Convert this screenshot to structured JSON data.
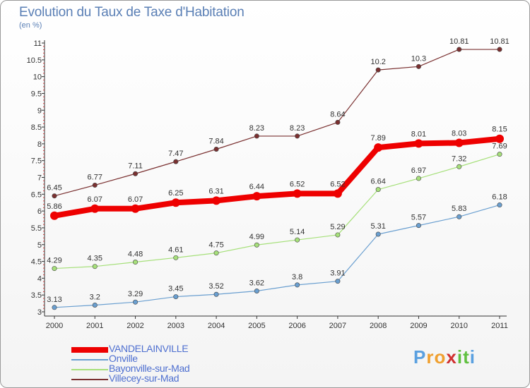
{
  "header": {
    "title": "Evolution du Taux de Taxe d'Habitation",
    "unit": "(en %)"
  },
  "chart_data": {
    "type": "line",
    "title": "Evolution du Taux de Taxe d'Habitation",
    "ylabel": "(en %)",
    "xlabel": "",
    "x": [
      "2000",
      "2001",
      "2002",
      "2003",
      "2004",
      "2005",
      "2006",
      "2007",
      "2008",
      "2009",
      "2010",
      "2011"
    ],
    "ylim": [
      3,
      11
    ],
    "y_ticks": [
      "3",
      "3.5",
      "4",
      "4.5",
      "5",
      "5.5",
      "6",
      "6.5",
      "7",
      "7.5",
      "8",
      "8.5",
      "9",
      "9.5",
      "10",
      "10.5",
      "11"
    ],
    "grid": false,
    "legend_position": "bottom-left",
    "series": [
      {
        "name": "VANDELAINVILLE",
        "color": "#ee0000",
        "values": [
          5.86,
          6.07,
          6.07,
          6.25,
          6.31,
          6.44,
          6.52,
          6.52,
          7.89,
          8.01,
          8.03,
          8.15
        ],
        "labels": [
          "5.86",
          "6.07",
          "6.07",
          "6.25",
          "6.31",
          "6.44",
          "6.52",
          "6.52",
          "7.89",
          "8.01",
          "8.03",
          "8.15"
        ]
      },
      {
        "name": "Onville",
        "color": "#6a9fd0",
        "values": [
          3.13,
          3.2,
          3.29,
          3.45,
          3.52,
          3.62,
          3.8,
          3.91,
          5.31,
          5.57,
          5.83,
          6.18
        ],
        "labels": [
          "3.13",
          "3.2",
          "3.29",
          "3.45",
          "3.52",
          "3.62",
          "3.8",
          "3.91",
          "5.31",
          "5.57",
          "5.83",
          "6.18"
        ]
      },
      {
        "name": "Bayonville-sur-Mad",
        "color": "#a6e07a",
        "values": [
          4.29,
          4.35,
          4.48,
          4.61,
          4.75,
          4.99,
          5.14,
          5.29,
          6.64,
          6.97,
          7.32,
          7.69
        ],
        "labels": [
          "4.29",
          "4.35",
          "4.48",
          "4.61",
          "4.75",
          "4.99",
          "5.14",
          "5.29",
          "6.64",
          "6.97",
          "7.32",
          "7.69"
        ]
      },
      {
        "name": "Villecey-sur-Mad",
        "color": "#7a3030",
        "values": [
          6.45,
          6.77,
          7.11,
          7.47,
          7.84,
          8.23,
          8.23,
          8.64,
          10.2,
          10.3,
          10.81,
          10.81
        ],
        "labels": [
          "6.45",
          "6.77",
          "7.11",
          "7.47",
          "7.84",
          "8.23",
          "8.23",
          "8.64",
          "10.2",
          "10.3",
          "10.81",
          "10.81"
        ]
      }
    ]
  },
  "logo": {
    "letters": [
      "P",
      "r",
      "o",
      "x",
      "i",
      "t",
      "i"
    ],
    "colors": [
      "#5aa0e0",
      "#f0a030",
      "#f0a030",
      "#d03030",
      "#60c040",
      "#60c040",
      "#5aa0e0"
    ]
  }
}
